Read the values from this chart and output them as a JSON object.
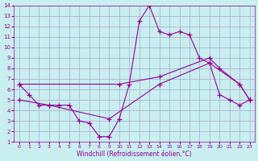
{
  "xlabel": "Windchill (Refroidissement éolien,°C)",
  "ylabel": "",
  "xlim": [
    -0.5,
    23.5
  ],
  "ylim": [
    1,
    14
  ],
  "xticks": [
    0,
    1,
    2,
    3,
    4,
    5,
    6,
    7,
    8,
    9,
    10,
    11,
    12,
    13,
    14,
    15,
    16,
    17,
    18,
    19,
    20,
    21,
    22,
    23
  ],
  "yticks": [
    1,
    2,
    3,
    4,
    5,
    6,
    7,
    8,
    9,
    10,
    11,
    12,
    13,
    14
  ],
  "background_color": "#c8eef0",
  "grid_color": "#aaaacc",
  "line_color": "#990099",
  "line1_x": [
    0,
    1,
    2,
    3,
    4,
    5,
    6,
    7,
    8,
    9,
    10,
    11,
    12,
    13,
    14,
    15,
    16,
    17,
    18,
    19,
    20,
    21,
    22,
    23
  ],
  "line1_y": [
    6.5,
    5.5,
    4.5,
    4.5,
    4.5,
    4.5,
    3.0,
    2.8,
    1.5,
    1.5,
    3.2,
    6.5,
    12.5,
    14.0,
    11.5,
    11.2,
    11.5,
    11.2,
    9.0,
    8.5,
    5.5,
    5.0,
    4.5,
    5.0
  ],
  "line2_x": [
    0,
    10,
    14,
    19,
    20,
    22,
    23
  ],
  "line2_y": [
    6.5,
    6.5,
    7.2,
    9.0,
    8.0,
    6.5,
    5.0
  ],
  "line3_x": [
    0,
    3,
    9,
    14,
    19,
    22,
    23
  ],
  "line3_y": [
    5.0,
    4.5,
    3.2,
    6.5,
    8.5,
    6.5,
    5.0
  ]
}
